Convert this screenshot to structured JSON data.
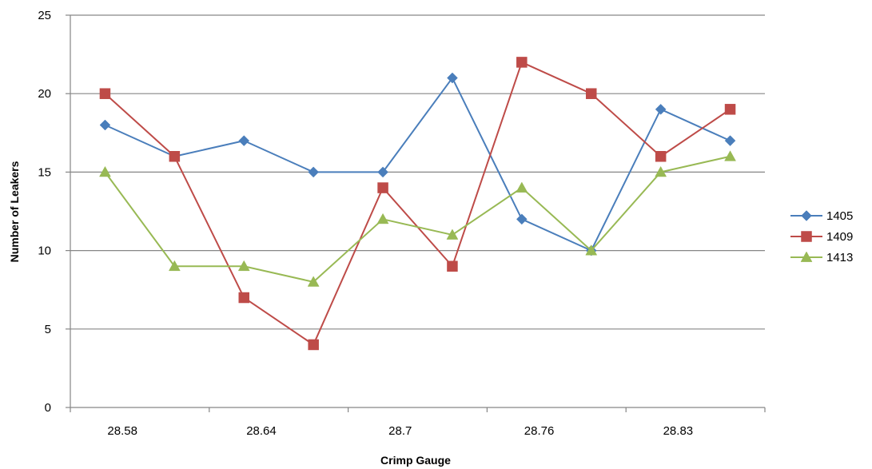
{
  "chart_data": {
    "type": "line",
    "xlabel": "Crimp Gauge",
    "ylabel": "Number of Leakers",
    "ylim": [
      0,
      25
    ],
    "yticks": [
      0,
      5,
      10,
      15,
      20,
      25
    ],
    "categories": [
      "28.58",
      "",
      "28.64",
      "",
      "28.7",
      "",
      "28.76",
      "",
      "28.83",
      ""
    ],
    "series": [
      {
        "name": "1405",
        "color": "#4a7ebb",
        "marker": "diamond",
        "values": [
          18,
          16,
          17,
          15,
          15,
          21,
          12,
          10,
          19,
          17
        ]
      },
      {
        "name": "1409",
        "color": "#be4b48",
        "marker": "square",
        "values": [
          20,
          16,
          7,
          4,
          14,
          9,
          22,
          20,
          16,
          19
        ]
      },
      {
        "name": "1413",
        "color": "#98b954",
        "marker": "triangle",
        "values": [
          15,
          9,
          9,
          8,
          12,
          11,
          14,
          10,
          15,
          16
        ]
      }
    ],
    "grid": true,
    "legend": "right"
  }
}
